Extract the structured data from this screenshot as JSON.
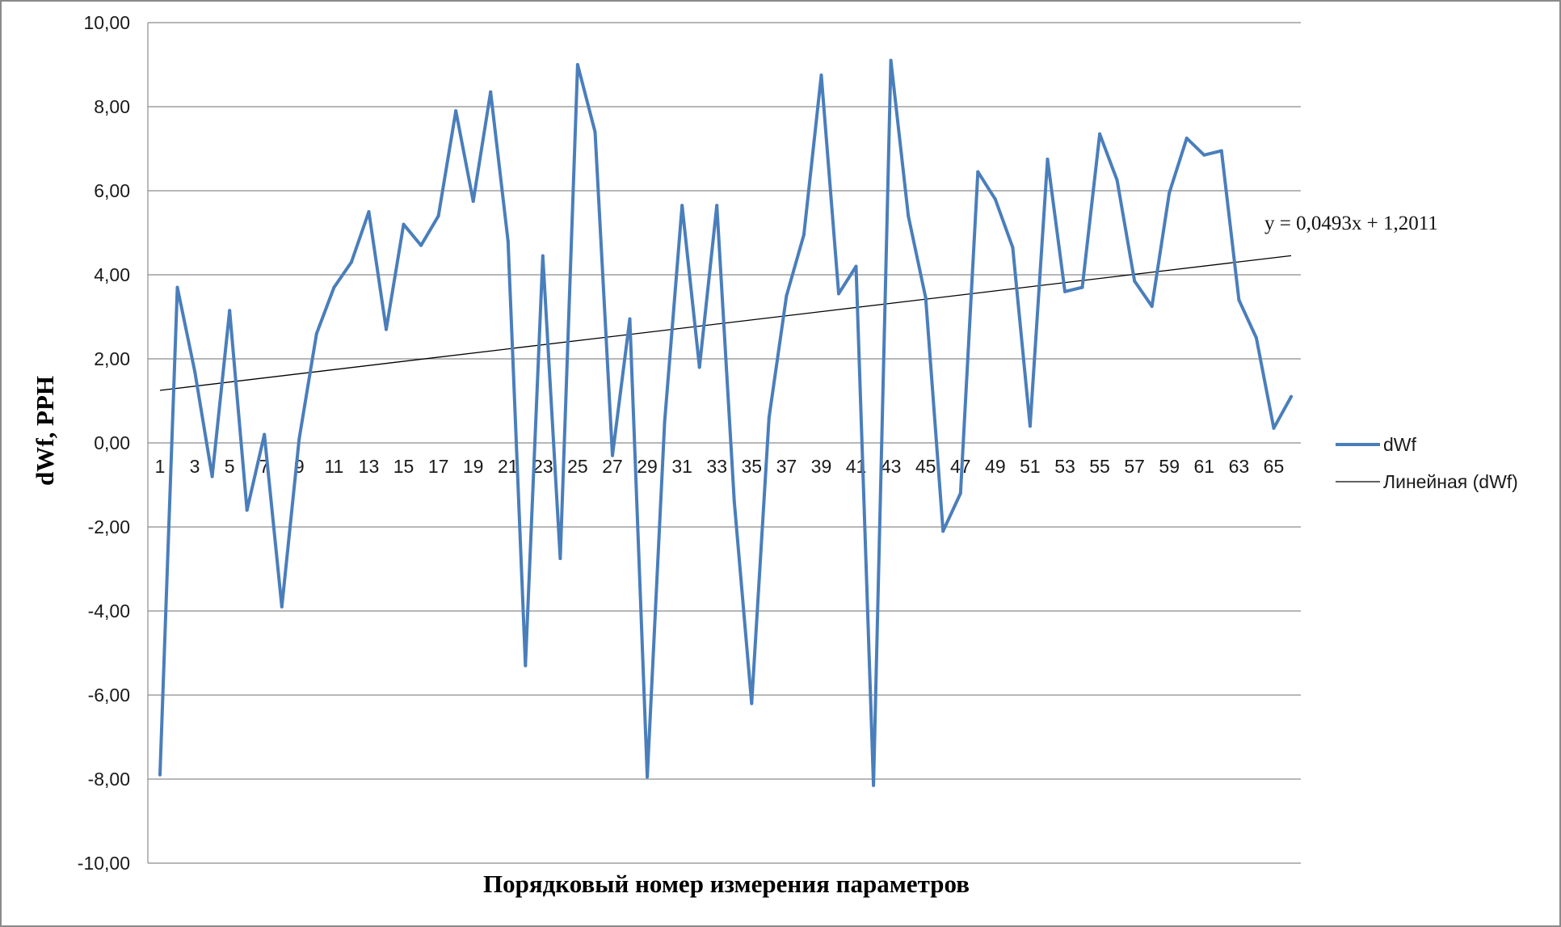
{
  "chart_data": {
    "type": "line",
    "xlabel": "Порядковый номер измерения параметров",
    "ylabel": "dWf, PPH",
    "ylim": [
      -10,
      10
    ],
    "y_ticks": [
      "10,00",
      "8,00",
      "6,00",
      "4,00",
      "2,00",
      "0,00",
      "-2,00",
      "-4,00",
      "-6,00",
      "-8,00",
      "-10,00"
    ],
    "x_tick_labels": [
      "1",
      "3",
      "5",
      "7",
      "9",
      "11",
      "13",
      "15",
      "17",
      "19",
      "21",
      "23",
      "25",
      "27",
      "29",
      "31",
      "33",
      "35",
      "37",
      "39",
      "41",
      "43",
      "45",
      "47",
      "49",
      "51",
      "53",
      "55",
      "57",
      "59",
      "61",
      "63",
      "65"
    ],
    "grid": true,
    "legend": "right",
    "series": [
      {
        "name": "dWf",
        "color": "#4a7ebb",
        "values": [
          -7.9,
          3.7,
          1.7,
          -0.8,
          3.15,
          -1.6,
          0.2,
          -3.9,
          0.1,
          2.6,
          3.7,
          4.3,
          5.5,
          2.7,
          5.2,
          4.7,
          5.4,
          7.9,
          5.75,
          8.35,
          4.8,
          -5.3,
          4.45,
          -2.75,
          9.0,
          7.4,
          -0.3,
          2.95,
          -7.95,
          0.5,
          5.65,
          1.8,
          5.65,
          -1.4,
          -6.2,
          0.6,
          3.5,
          4.95,
          8.75,
          3.55,
          4.2,
          -8.15,
          9.1,
          5.4,
          3.45,
          -2.1,
          -1.2,
          6.45,
          5.8,
          4.65,
          0.4,
          6.75,
          3.6,
          3.7,
          7.35,
          6.25,
          3.85,
          3.25,
          5.95,
          7.25,
          6.85,
          6.95,
          3.4,
          2.5,
          0.35,
          1.1
        ]
      }
    ],
    "trendline": {
      "name": "Линейная (dWf)",
      "color": "#000000",
      "slope": 0.0493,
      "intercept": 1.2011,
      "equation": "y = 0,0493x + 1,2011"
    }
  }
}
